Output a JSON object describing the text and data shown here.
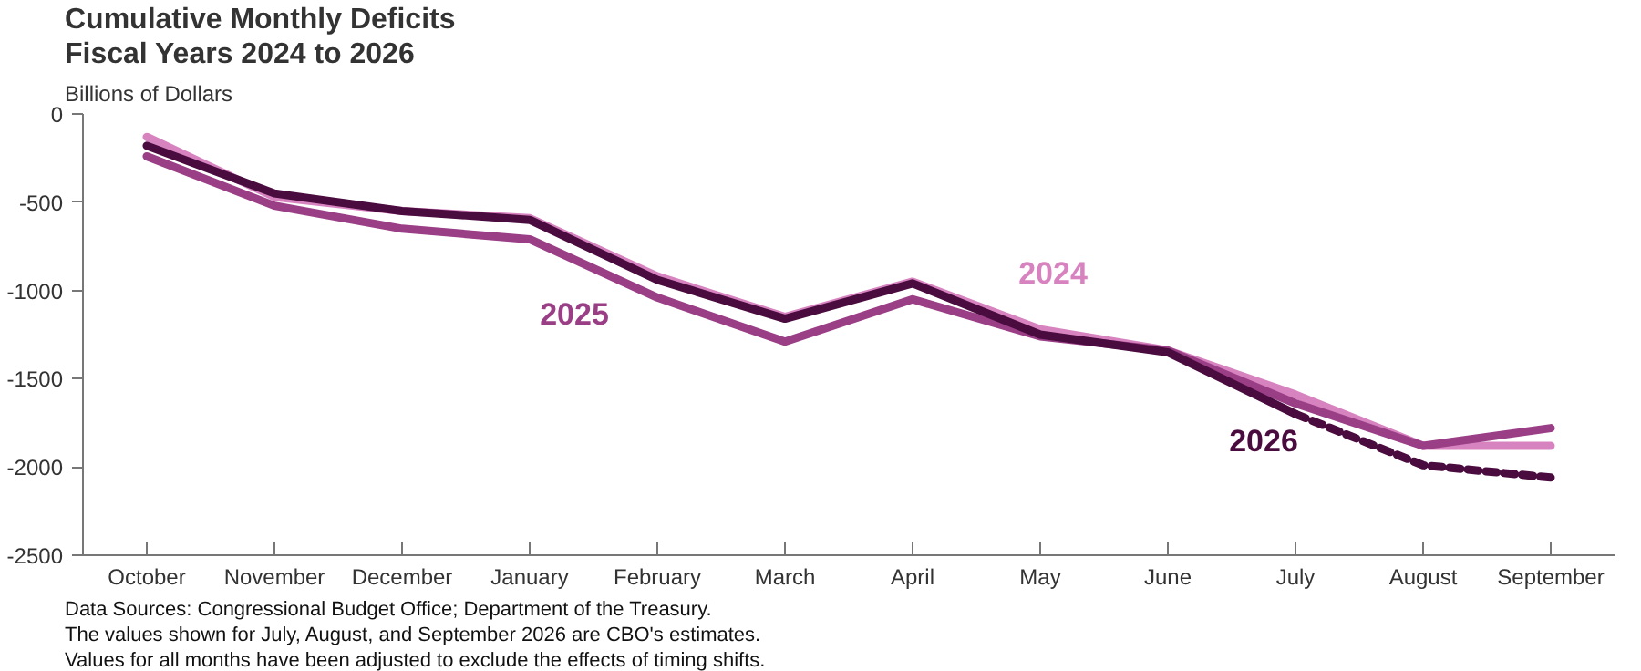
{
  "chart_data": {
    "type": "line",
    "title": "Cumulative Monthly Deficits",
    "subtitle": "Fiscal Years 2024 to 2026",
    "ylabel": "Billions of Dollars",
    "categories": [
      "October",
      "November",
      "December",
      "January",
      "February",
      "March",
      "April",
      "May",
      "June",
      "July",
      "August",
      "September"
    ],
    "ylim": [
      -2500,
      0
    ],
    "yticks": [
      -2500,
      -2000,
      -1500,
      -1000,
      -500,
      0
    ],
    "grid": false,
    "marker": "none",
    "series": [
      {
        "name": "2024",
        "color": "#d783c0",
        "line_style": "solid",
        "values": [
          -130,
          -470,
          -550,
          -590,
          -920,
          -1150,
          -950,
          -1220,
          -1340,
          -1590,
          -1880,
          -1880
        ]
      },
      {
        "name": "2025",
        "color": "#9a3e86",
        "line_style": "solid",
        "values": [
          -240,
          -520,
          -650,
          -710,
          -1040,
          -1290,
          -1050,
          -1260,
          -1340,
          -1640,
          -1880,
          -1780
        ]
      },
      {
        "name": "2026",
        "color": "#4a0b3f",
        "line_style": "solid",
        "values": [
          -180,
          -450,
          -550,
          -600,
          -940,
          -1160,
          -960,
          -1250,
          -1350,
          -1700,
          null,
          null
        ]
      },
      {
        "color": "#4a0b3f",
        "line_style": "dashed",
        "values": [
          null,
          null,
          null,
          null,
          null,
          null,
          null,
          null,
          null,
          -1700,
          -1990,
          -2060
        ]
      }
    ],
    "annotations": [
      "Data Sources: Congressional Budget Office; Department of the Treasury.",
      "The values shown for July, August, and September 2026 are CBO's estimates.",
      "Values for all months have been adjusted to exclude the effects of timing shifts."
    ]
  }
}
